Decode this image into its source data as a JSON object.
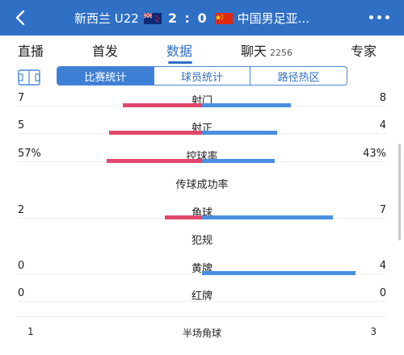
{
  "header": {
    "home_team": "新西兰 U22",
    "score": "2 : 0",
    "away_team": "中国男足亚...",
    "back_icon": "back-arrow-icon",
    "more_icon": "more-dots-icon"
  },
  "main_tabs": [
    {
      "label": "直播",
      "count": ""
    },
    {
      "label": "首发",
      "count": ""
    },
    {
      "label": "数据",
      "count": ""
    },
    {
      "label": "聊天",
      "count": "2256"
    },
    {
      "label": "专家",
      "count": ""
    }
  ],
  "active_main_tab": "数据",
  "sub_tabs": [
    {
      "label": "比赛统计"
    },
    {
      "label": "球员统计"
    },
    {
      "label": "路径热区"
    }
  ],
  "active_sub_tab": "比赛统计",
  "colors": {
    "home_bar": "#e0476b",
    "away_bar": "#4a8fe0",
    "header_bg": "#2f6fc4"
  },
  "stats": [
    {
      "label": "射门",
      "home": "7",
      "away": "8",
      "home_val": 7,
      "away_val": 8
    },
    {
      "label": "射正",
      "home": "5",
      "away": "4",
      "home_val": 5,
      "away_val": 4
    },
    {
      "label": "控球率",
      "home": "57%",
      "away": "43%",
      "home_val": 57,
      "away_val": 43
    },
    {
      "label": "传球成功率",
      "home": "",
      "away": "",
      "home_val": 0,
      "away_val": 0
    },
    {
      "label": "角球",
      "home": "2",
      "away": "7",
      "home_val": 2,
      "away_val": 7
    },
    {
      "label": "犯规",
      "home": "",
      "away": "",
      "home_val": 0,
      "away_val": 0
    },
    {
      "label": "黄牌",
      "home": "0",
      "away": "4",
      "home_val": 0,
      "away_val": 4
    },
    {
      "label": "红牌",
      "home": "0",
      "away": "0",
      "home_val": 0,
      "away_val": 0
    }
  ],
  "half_stat": {
    "label": "半场角球",
    "home": "1",
    "away": "3"
  }
}
